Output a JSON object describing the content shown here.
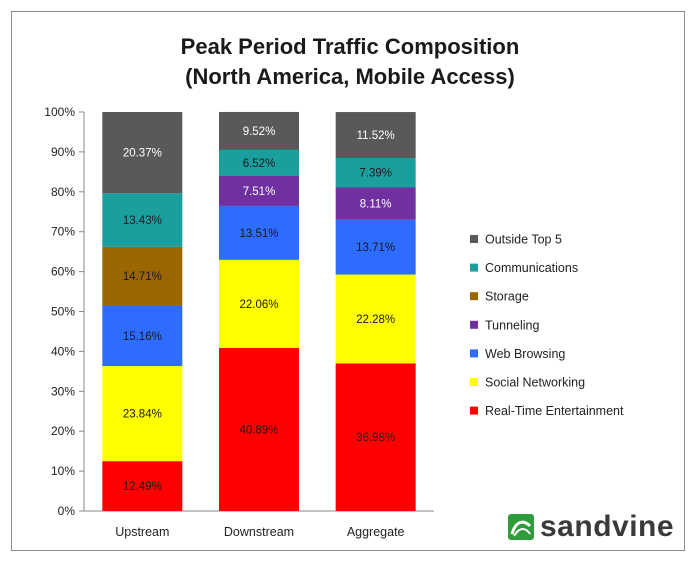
{
  "chart_data": {
    "type": "bar",
    "stacked": true,
    "title_lines": [
      "Peak Period Traffic Composition",
      "(North America, Mobile Access)"
    ],
    "categories": [
      "Upstream",
      "Downstream",
      "Aggregate"
    ],
    "ylim": [
      0,
      100
    ],
    "yticks": [
      "0%",
      "10%",
      "20%",
      "30%",
      "40%",
      "50%",
      "60%",
      "70%",
      "80%",
      "90%",
      "100%"
    ],
    "legend_position": "right",
    "series": [
      {
        "name": "Real-Time Entertainment",
        "color": "#ff0000",
        "label_color": "#1a1a1a",
        "values": [
          12.49,
          40.89,
          36.98
        ],
        "labels": [
          "12.49%",
          "40.89%",
          "36.98%"
        ]
      },
      {
        "name": "Social Networking",
        "color": "#ffff00",
        "label_color": "#1a1a1a",
        "values": [
          23.84,
          22.06,
          22.28
        ],
        "labels": [
          "23.84%",
          "22.06%",
          "22.28%"
        ]
      },
      {
        "name": "Web Browsing",
        "color": "#2e6cff",
        "label_color": "#1a1a1a",
        "values": [
          15.16,
          13.51,
          13.71
        ],
        "labels": [
          "15.16%",
          "13.51%",
          "13.71%"
        ]
      },
      {
        "name": "Tunneling",
        "color": "#7030a0",
        "label_color": "#ffffff",
        "values": [
          0,
          7.51,
          8.11
        ],
        "labels": [
          "",
          "7.51%",
          "8.11%"
        ]
      },
      {
        "name": "Storage",
        "color": "#996600",
        "label_color": "#1a1a1a",
        "values": [
          14.71,
          0,
          0
        ],
        "labels": [
          "14.71%",
          "",
          ""
        ]
      },
      {
        "name": "Communications",
        "color": "#1a9e9e",
        "label_color": "#1a1a1a",
        "values": [
          13.43,
          6.52,
          7.39
        ],
        "labels": [
          "13.43%",
          "6.52%",
          "7.39%"
        ]
      },
      {
        "name": "Outside Top 5",
        "color": "#595959",
        "label_color": "#ffffff",
        "values": [
          20.37,
          9.52,
          11.52
        ],
        "labels": [
          "20.37%",
          "9.52%",
          "11.52%"
        ]
      }
    ],
    "legend_order": [
      "Outside Top 5",
      "Communications",
      "Storage",
      "Tunneling",
      "Web Browsing",
      "Social Networking",
      "Real-Time Entertainment"
    ]
  },
  "logo": {
    "text": "sandvine",
    "icon": "sandvine-logo-icon",
    "color": "#2e9c3a"
  }
}
